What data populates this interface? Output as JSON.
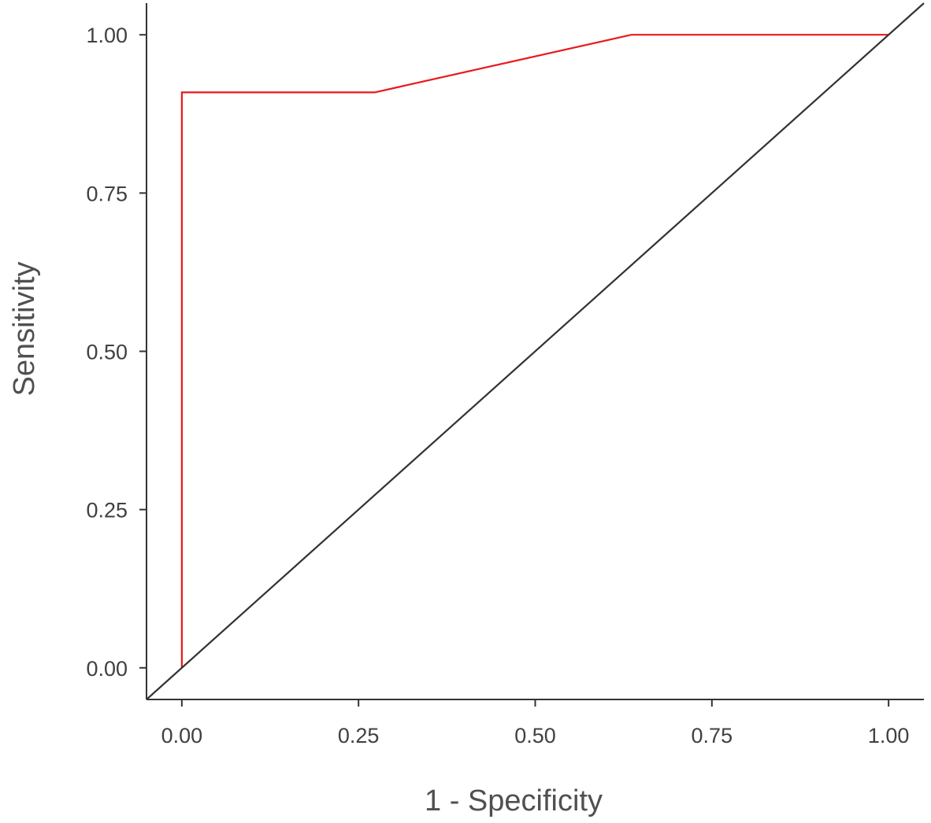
{
  "chart_data": {
    "type": "line",
    "title": "",
    "xlabel": "1 - Specificity",
    "ylabel": "Sensitivity",
    "xlim": [
      -0.05,
      1.05
    ],
    "ylim": [
      -0.05,
      1.05
    ],
    "x_ticks": [
      "0.00",
      "0.25",
      "0.50",
      "0.75",
      "1.00"
    ],
    "y_ticks": [
      "0.00",
      "0.25",
      "0.50",
      "0.75",
      "1.00"
    ],
    "grid": false,
    "series": [
      {
        "color": "#e8191c",
        "x": [
          0.0,
          0.0,
          0.273,
          0.636,
          1.0
        ],
        "y": [
          0.0,
          0.909,
          0.909,
          1.0,
          1.0
        ]
      },
      {
        "color": "#333333",
        "style": "reference-diagonal",
        "x": [
          -0.05,
          1.05
        ],
        "y": [
          -0.05,
          1.05
        ]
      }
    ]
  }
}
